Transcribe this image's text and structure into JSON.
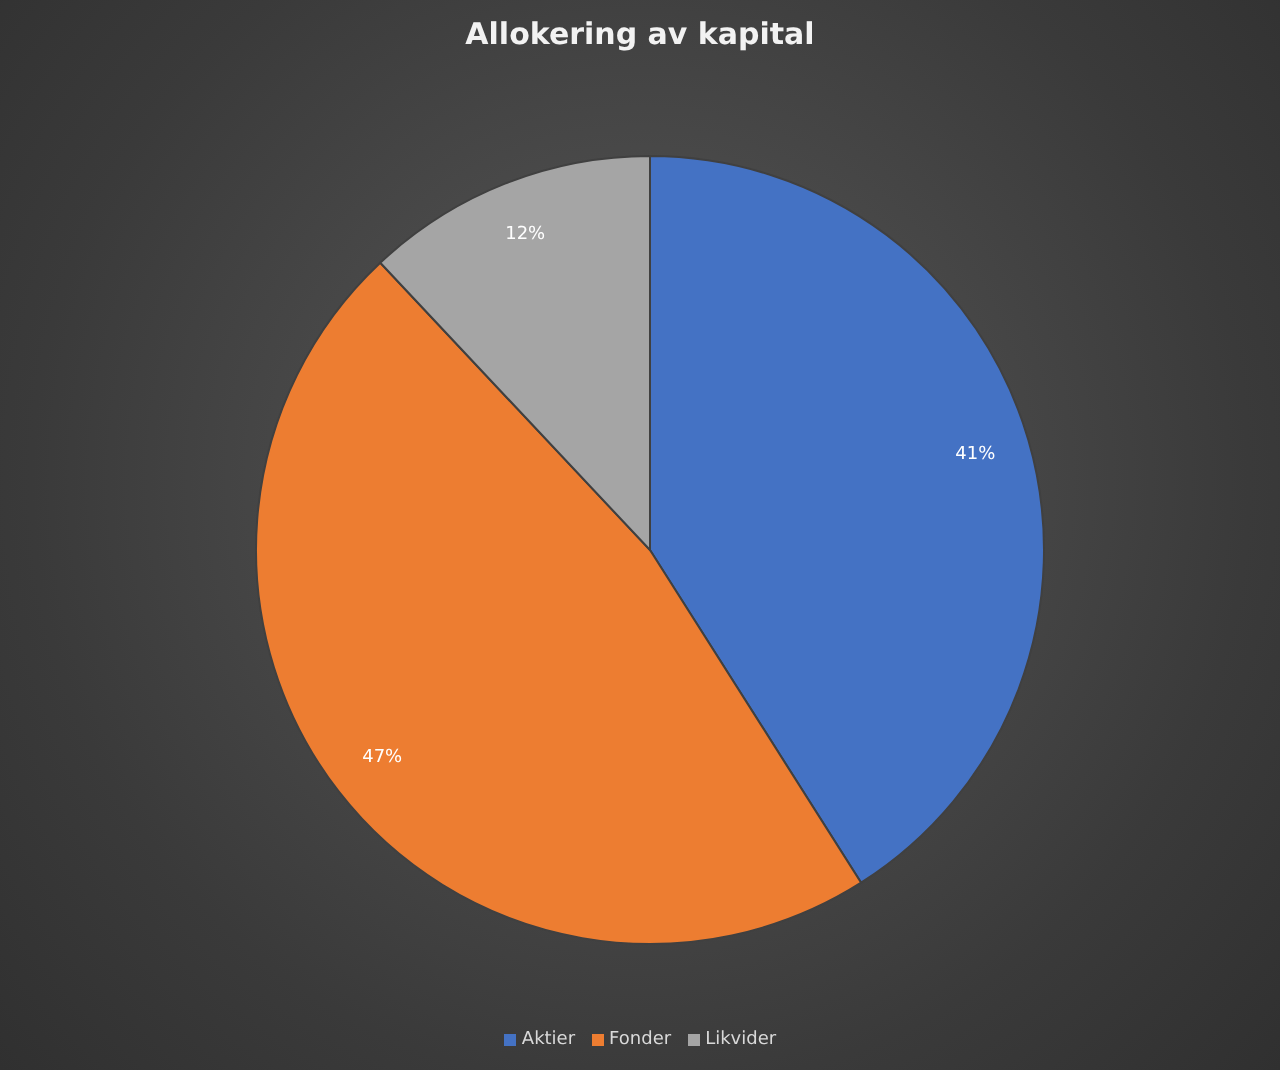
{
  "chart_data": {
    "type": "pie",
    "title": "Allokering av kapital",
    "categories": [
      "Aktier",
      "Fonder",
      "Likvider"
    ],
    "values": [
      41,
      47,
      12
    ],
    "colors": [
      "#4472c4",
      "#ed7d31",
      "#a5a5a5"
    ],
    "value_labels": [
      "41%",
      "47%",
      "12%"
    ],
    "legend": "bottom"
  }
}
